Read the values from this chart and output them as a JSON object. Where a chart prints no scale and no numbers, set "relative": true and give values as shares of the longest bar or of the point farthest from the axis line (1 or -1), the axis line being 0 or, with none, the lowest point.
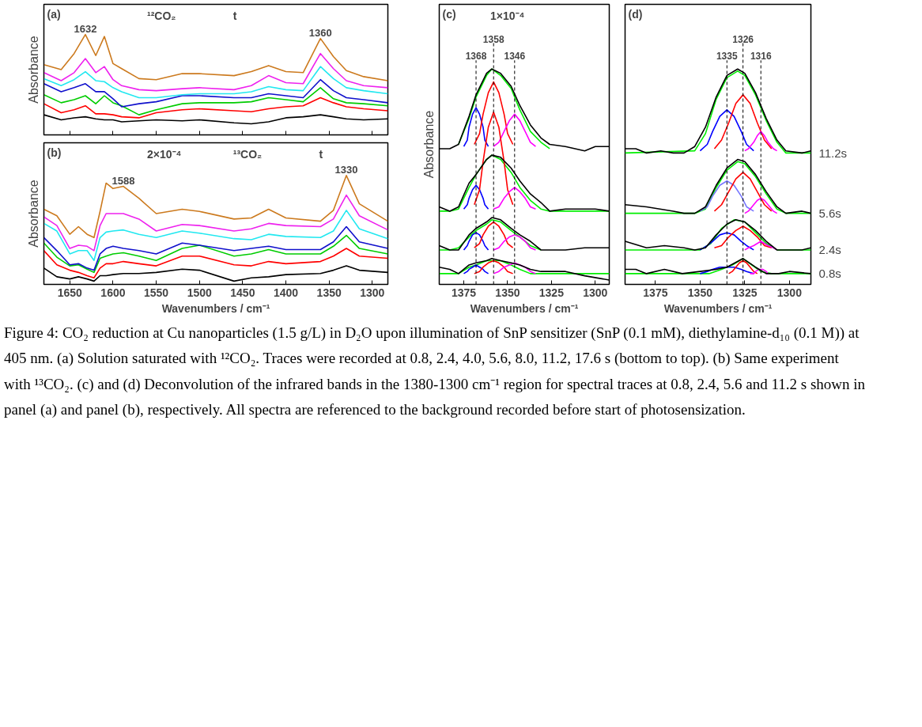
{
  "chart_data": [
    {
      "type": "line",
      "title": "(a)",
      "relative": true,
      "ylabel": "Absorbance",
      "xlim": [
        1680,
        1282
      ],
      "xticks": [
        1650,
        1600,
        1550,
        1500,
        1450,
        1400,
        1350,
        1300
      ],
      "tick_labels": false,
      "x": [
        1680,
        1660,
        1645,
        1632,
        1620,
        1610,
        1600,
        1590,
        1570,
        1550,
        1520,
        1500,
        1460,
        1440,
        1420,
        1400,
        1380,
        1360,
        1345,
        1330,
        1310,
        1282
      ],
      "annotations": [
        "¹²CO₂",
        "t",
        {
          "text": "1632",
          "x": 1632,
          "y": 1.0
        },
        {
          "text": "1360",
          "x": 1360,
          "y": 0.96
        }
      ],
      "series": [
        {
          "color": "#000000",
          "values": [
            0.2,
            0.15,
            0.17,
            0.18,
            0.16,
            0.15,
            0.15,
            0.13,
            0.14,
            0.15,
            0.14,
            0.15,
            0.12,
            0.11,
            0.13,
            0.17,
            0.18,
            0.2,
            0.18,
            0.16,
            0.15,
            0.16
          ]
        },
        {
          "color": "#ff0000",
          "values": [
            0.31,
            0.22,
            0.25,
            0.29,
            0.21,
            0.21,
            0.2,
            0.18,
            0.17,
            0.22,
            0.25,
            0.26,
            0.24,
            0.23,
            0.26,
            0.28,
            0.29,
            0.37,
            0.32,
            0.28,
            0.26,
            0.24
          ]
        },
        {
          "color": "#00cc00",
          "values": [
            0.4,
            0.32,
            0.35,
            0.39,
            0.31,
            0.39,
            0.32,
            0.29,
            0.2,
            0.25,
            0.31,
            0.32,
            0.32,
            0.33,
            0.37,
            0.35,
            0.33,
            0.47,
            0.36,
            0.32,
            0.31,
            0.29
          ]
        },
        {
          "color": "#1010cc",
          "values": [
            0.51,
            0.43,
            0.47,
            0.51,
            0.43,
            0.43,
            0.36,
            0.28,
            0.31,
            0.33,
            0.39,
            0.39,
            0.37,
            0.37,
            0.41,
            0.39,
            0.37,
            0.55,
            0.44,
            0.37,
            0.35,
            0.32
          ]
        },
        {
          "color": "#22e8f0",
          "values": [
            0.56,
            0.49,
            0.55,
            0.63,
            0.54,
            0.53,
            0.47,
            0.43,
            0.37,
            0.37,
            0.4,
            0.41,
            0.41,
            0.43,
            0.48,
            0.45,
            0.44,
            0.68,
            0.56,
            0.47,
            0.44,
            0.41
          ]
        },
        {
          "color": "#ee22ee",
          "values": [
            0.62,
            0.54,
            0.62,
            0.76,
            0.62,
            0.68,
            0.55,
            0.49,
            0.45,
            0.44,
            0.46,
            0.47,
            0.45,
            0.49,
            0.59,
            0.52,
            0.51,
            0.81,
            0.66,
            0.54,
            0.49,
            0.47
          ]
        },
        {
          "color": "#cc7a1e",
          "values": [
            0.7,
            0.65,
            0.81,
            1.0,
            0.79,
            0.98,
            0.71,
            0.66,
            0.56,
            0.55,
            0.61,
            0.61,
            0.59,
            0.63,
            0.69,
            0.63,
            0.62,
            0.96,
            0.78,
            0.64,
            0.58,
            0.54
          ]
        }
      ]
    },
    {
      "type": "line",
      "title": "(b)",
      "relative": true,
      "ylabel": "Absorbance",
      "xlabel": "Wavenumbers / cm⁻¹",
      "xlim": [
        1680,
        1282
      ],
      "xticks": [
        1650,
        1600,
        1550,
        1500,
        1450,
        1400,
        1350,
        1300
      ],
      "x": [
        1680,
        1665,
        1650,
        1640,
        1630,
        1622,
        1615,
        1608,
        1600,
        1588,
        1570,
        1550,
        1520,
        1500,
        1460,
        1440,
        1420,
        1400,
        1360,
        1345,
        1330,
        1315,
        1282
      ],
      "annotations": [
        "2×10⁻⁴",
        "¹³CO₂",
        "t",
        {
          "text": "1588",
          "x": 1588,
          "y": 0.9
        },
        {
          "text": "1330",
          "x": 1330,
          "y": 1.0
        }
      ],
      "series": [
        {
          "color": "#000000",
          "values": [
            0.15,
            0.07,
            0.05,
            0.07,
            0.05,
            0.03,
            0.08,
            0.08,
            0.09,
            0.1,
            0.1,
            0.11,
            0.14,
            0.13,
            0.03,
            0.06,
            0.07,
            0.09,
            0.1,
            0.13,
            0.17,
            0.13,
            0.11
          ]
        },
        {
          "color": "#ff0000",
          "values": [
            0.31,
            0.18,
            0.13,
            0.11,
            0.08,
            0.06,
            0.15,
            0.19,
            0.19,
            0.21,
            0.19,
            0.17,
            0.26,
            0.26,
            0.18,
            0.17,
            0.21,
            0.19,
            0.21,
            0.26,
            0.33,
            0.26,
            0.24
          ]
        },
        {
          "color": "#00cc00",
          "values": [
            0.38,
            0.25,
            0.17,
            0.18,
            0.14,
            0.11,
            0.24,
            0.26,
            0.28,
            0.29,
            0.26,
            0.22,
            0.33,
            0.36,
            0.26,
            0.28,
            0.32,
            0.28,
            0.28,
            0.35,
            0.45,
            0.33,
            0.28
          ]
        },
        {
          "color": "#1010cc",
          "values": [
            0.43,
            0.31,
            0.18,
            0.19,
            0.15,
            0.13,
            0.28,
            0.33,
            0.35,
            0.33,
            0.31,
            0.28,
            0.38,
            0.36,
            0.31,
            0.33,
            0.35,
            0.32,
            0.32,
            0.39,
            0.53,
            0.39,
            0.33
          ]
        },
        {
          "color": "#22e8f0",
          "values": [
            0.56,
            0.49,
            0.28,
            0.31,
            0.31,
            0.22,
            0.43,
            0.48,
            0.49,
            0.5,
            0.46,
            0.43,
            0.49,
            0.47,
            0.42,
            0.41,
            0.46,
            0.44,
            0.43,
            0.49,
            0.68,
            0.51,
            0.42
          ]
        },
        {
          "color": "#ee22ee",
          "values": [
            0.62,
            0.54,
            0.33,
            0.36,
            0.35,
            0.31,
            0.54,
            0.65,
            0.65,
            0.65,
            0.6,
            0.49,
            0.55,
            0.54,
            0.49,
            0.51,
            0.56,
            0.54,
            0.53,
            0.6,
            0.82,
            0.63,
            0.5
          ]
        },
        {
          "color": "#cc7a1e",
          "values": [
            0.69,
            0.63,
            0.46,
            0.53,
            0.46,
            0.43,
            0.67,
            0.93,
            0.88,
            0.9,
            0.79,
            0.65,
            0.69,
            0.67,
            0.6,
            0.61,
            0.69,
            0.61,
            0.58,
            0.68,
            1.0,
            0.74,
            0.58
          ]
        }
      ]
    },
    {
      "type": "line",
      "title": "(c)",
      "relative": true,
      "ylabel": "Absorbance",
      "xlabel": "Wavenumbers / cm⁻¹",
      "xlim": [
        1389,
        1292
      ],
      "xticks": [
        1375,
        1350,
        1325,
        1300
      ],
      "annotations": [
        "1×10⁻⁴"
      ],
      "ref_lines": [
        {
          "axis": "x",
          "value": 1368,
          "label": "1368",
          "line_style": "dashed",
          "color": "#000000"
        },
        {
          "axis": "x",
          "value": 1358,
          "label": "1358",
          "line_style": "dashed",
          "color": "#000000"
        },
        {
          "axis": "x",
          "value": 1346,
          "label": "1346",
          "line_style": "dashed",
          "color": "#000000"
        }
      ],
      "series": [
        {
          "color": "#00ee00",
          "x": [
            1378,
            1372,
            1368,
            1362,
            1359,
            1354,
            1348,
            1343,
            1337,
            1331,
            1326
          ],
          "values": [
            0.65,
            0.77,
            0.87,
            0.97,
            1.0,
            0.97,
            0.91,
            0.81,
            0.71,
            0.66,
            0.63
          ]
        },
        {
          "color": "#0000ff",
          "x": [
            1375,
            1373,
            1372,
            1370,
            1368,
            1366,
            1364,
            1363,
            1361
          ],
          "values": [
            0.64,
            0.67,
            0.73,
            0.79,
            0.82,
            0.79,
            0.73,
            0.67,
            0.64
          ]
        },
        {
          "color": "#ff0000",
          "x": [
            1369,
            1366,
            1364,
            1361,
            1358,
            1355,
            1352,
            1350,
            1347
          ],
          "values": [
            0.65,
            0.7,
            0.79,
            0.89,
            0.94,
            0.89,
            0.79,
            0.7,
            0.65
          ]
        },
        {
          "color": "#ff00ff",
          "x": [
            1358,
            1355,
            1352,
            1349,
            1346,
            1343,
            1340,
            1337,
            1334
          ],
          "values": [
            0.64,
            0.66,
            0.71,
            0.76,
            0.79,
            0.76,
            0.71,
            0.66,
            0.64
          ]
        },
        {
          "color": "#000000",
          "x": [
            1389,
            1383,
            1378,
            1372,
            1368,
            1362,
            1359,
            1354,
            1348,
            1343,
            1337,
            1331,
            1326,
            1317,
            1306,
            1300,
            1292
          ],
          "values": [
            0.63,
            0.63,
            0.65,
            0.78,
            0.88,
            0.98,
            1.0,
            0.98,
            0.92,
            0.83,
            0.74,
            0.68,
            0.65,
            0.64,
            0.62,
            0.64,
            0.64
          ]
        },
        {
          "color": "#00ee00",
          "x": [
            1389,
            1383,
            1378,
            1372,
            1368,
            1362,
            1359,
            1354,
            1348,
            1343,
            1337,
            1331,
            1326,
            1292
          ],
          "values": [
            0.34,
            0.34,
            0.35,
            0.45,
            0.51,
            0.58,
            0.6,
            0.58,
            0.52,
            0.45,
            0.39,
            0.35,
            0.34,
            0.34
          ]
        },
        {
          "color": "#0000ff",
          "x": [
            1375,
            1373,
            1372,
            1370,
            1368,
            1366,
            1364,
            1363,
            1361
          ],
          "values": [
            0.35,
            0.37,
            0.4,
            0.44,
            0.46,
            0.44,
            0.4,
            0.37,
            0.35
          ]
        },
        {
          "color": "#ff0000",
          "x": [
            1369,
            1366,
            1364,
            1361,
            1358,
            1355,
            1352,
            1350,
            1347
          ],
          "values": [
            0.37,
            0.44,
            0.57,
            0.73,
            0.8,
            0.73,
            0.57,
            0.44,
            0.37
          ]
        },
        {
          "color": "#ff00ff",
          "x": [
            1358,
            1355,
            1352,
            1349,
            1346,
            1343,
            1340,
            1337,
            1334
          ],
          "values": [
            0.35,
            0.36,
            0.4,
            0.43,
            0.45,
            0.43,
            0.4,
            0.36,
            0.35
          ]
        },
        {
          "color": "#000000",
          "x": [
            1389,
            1383,
            1378,
            1372,
            1368,
            1362,
            1359,
            1354,
            1348,
            1343,
            1337,
            1331,
            1326,
            1317,
            1306,
            1300,
            1292
          ],
          "values": [
            0.36,
            0.34,
            0.36,
            0.47,
            0.51,
            0.58,
            0.6,
            0.59,
            0.54,
            0.48,
            0.42,
            0.38,
            0.34,
            0.35,
            0.35,
            0.35,
            0.34
          ]
        },
        {
          "color": "#00ee00",
          "x": [
            1389,
            1383,
            1378,
            1372,
            1368,
            1362,
            1359,
            1354,
            1348,
            1343,
            1337,
            1331
          ],
          "values": [
            0.16,
            0.16,
            0.17,
            0.22,
            0.25,
            0.28,
            0.3,
            0.29,
            0.25,
            0.22,
            0.18,
            0.16
          ]
        },
        {
          "color": "#0000ff",
          "x": [
            1375,
            1373,
            1372,
            1370,
            1368,
            1366,
            1364,
            1363,
            1361
          ],
          "values": [
            0.16,
            0.18,
            0.2,
            0.23,
            0.24,
            0.23,
            0.2,
            0.18,
            0.16
          ]
        },
        {
          "color": "#ff0000",
          "x": [
            1369,
            1366,
            1364,
            1361,
            1358,
            1355,
            1352,
            1350,
            1347
          ],
          "values": [
            0.17,
            0.19,
            0.23,
            0.27,
            0.29,
            0.27,
            0.23,
            0.19,
            0.17
          ]
        },
        {
          "color": "#ff00ff",
          "x": [
            1358,
            1355,
            1352,
            1349,
            1346,
            1343,
            1340,
            1337,
            1334
          ],
          "values": [
            0.16,
            0.17,
            0.2,
            0.22,
            0.23,
            0.22,
            0.2,
            0.17,
            0.16
          ]
        },
        {
          "color": "#000000",
          "x": [
            1389,
            1383,
            1378,
            1372,
            1368,
            1362,
            1359,
            1354,
            1348,
            1343,
            1337,
            1331,
            1326,
            1317,
            1306,
            1292
          ],
          "values": [
            0.18,
            0.16,
            0.16,
            0.23,
            0.26,
            0.29,
            0.31,
            0.3,
            0.26,
            0.23,
            0.2,
            0.16,
            0.16,
            0.16,
            0.17,
            0.17
          ]
        },
        {
          "color": "#00ee00",
          "x": [
            1389,
            1378,
            1372,
            1368,
            1362,
            1359,
            1354,
            1348,
            1343,
            1337,
            1292
          ],
          "values": [
            0.05,
            0.05,
            0.08,
            0.09,
            0.11,
            0.11,
            0.11,
            0.09,
            0.07,
            0.05,
            0.05
          ]
        },
        {
          "color": "#0000ff",
          "x": [
            1375,
            1373,
            1372,
            1370,
            1368,
            1366,
            1364,
            1363,
            1361
          ],
          "values": [
            0.05,
            0.06,
            0.07,
            0.08,
            0.09,
            0.08,
            0.07,
            0.06,
            0.05
          ]
        },
        {
          "color": "#ff0000",
          "x": [
            1369,
            1366,
            1364,
            1361,
            1358,
            1355,
            1352,
            1350,
            1347
          ],
          "values": [
            0.05,
            0.06,
            0.08,
            0.1,
            0.11,
            0.1,
            0.08,
            0.06,
            0.05
          ]
        },
        {
          "color": "#ff00ff",
          "x": [
            1358,
            1355,
            1352,
            1349,
            1346,
            1343,
            1340,
            1337,
            1334
          ],
          "values": [
            0.05,
            0.06,
            0.08,
            0.09,
            0.1,
            0.09,
            0.08,
            0.06,
            0.05
          ]
        },
        {
          "color": "#000000",
          "x": [
            1389,
            1383,
            1378,
            1372,
            1368,
            1362,
            1359,
            1354,
            1348,
            1343,
            1337,
            1331,
            1317,
            1306,
            1292
          ],
          "values": [
            0.08,
            0.07,
            0.05,
            0.09,
            0.1,
            0.11,
            0.12,
            0.11,
            0.1,
            0.09,
            0.07,
            0.06,
            0.06,
            0.04,
            0.02
          ]
        }
      ]
    },
    {
      "type": "line",
      "title": "(d)",
      "relative": true,
      "xlabel": "Wavenumbers / cm⁻¹",
      "xlim": [
        1392,
        1288
      ],
      "xticks": [
        1375,
        1350,
        1325,
        1300
      ],
      "annotations": [
        {
          "text": "11.2s",
          "x": 1288,
          "y": 0.61
        },
        {
          "text": "5.6s",
          "x": 1288,
          "y": 0.33
        },
        {
          "text": "2.4s",
          "x": 1288,
          "y": 0.16
        },
        {
          "text": "0.8s",
          "x": 1288,
          "y": 0.05
        },
        "Figure 4: CO₂ reduction at Cu nanoparticles (1.5 g/L) in D₂O upon illumination of SnP sensitizer (SnP (0.1 mM), diethylamine-d₁₀ (0.1 M)) at 405 nm. (a) Solution saturated with ¹²CO₂. Traces were recorded at 0.8, 2.4, 4.0, 5.6, 8.0, 11.2, 17.6 s (bottom to top). (b) Same experiment with ¹³CO₂. (c) and (d) Deconvolution of the infrared bands in the 1380-1300 cm⁻¹ region for spectral traces at 0.8, 2.4, 5.6 and 11.2 s shown in panel (a) and panel (b), respectively. All spectra are referenced to the background recorded before start of photosensization."
      ],
      "ref_lines": [
        {
          "axis": "x",
          "value": 1335,
          "label": "1335",
          "line_style": "dashed",
          "color": "#000000"
        },
        {
          "axis": "x",
          "value": 1326,
          "label": "1326",
          "line_style": "dashed",
          "color": "#000000"
        },
        {
          "axis": "x",
          "value": 1316,
          "label": "1316",
          "line_style": "dashed",
          "color": "#000000"
        }
      ],
      "series": [
        {
          "color": "#00ee00",
          "x": [
            1392,
            1353,
            1347,
            1341,
            1335,
            1329,
            1325,
            1319,
            1313,
            1307,
            1302,
            1288
          ],
          "values": [
            0.61,
            0.62,
            0.7,
            0.86,
            0.96,
            0.99,
            0.97,
            0.88,
            0.76,
            0.66,
            0.61,
            0.61
          ]
        },
        {
          "color": "#0000ff",
          "x": [
            1350,
            1346,
            1343,
            1339,
            1335,
            1331,
            1327,
            1324,
            1320
          ],
          "values": [
            0.62,
            0.65,
            0.71,
            0.78,
            0.81,
            0.78,
            0.71,
            0.65,
            0.62
          ]
        },
        {
          "color": "#ff0000",
          "x": [
            1342,
            1338,
            1334,
            1330,
            1326,
            1322,
            1318,
            1314,
            1310
          ],
          "values": [
            0.63,
            0.67,
            0.75,
            0.84,
            0.88,
            0.84,
            0.75,
            0.67,
            0.63
          ]
        },
        {
          "color": "#ff00ff",
          "x": [
            1325,
            1323,
            1320,
            1318,
            1316,
            1314,
            1312,
            1309,
            1307
          ],
          "values": [
            0.62,
            0.63,
            0.66,
            0.69,
            0.71,
            0.69,
            0.66,
            0.63,
            0.62
          ]
        },
        {
          "color": "#000000",
          "x": [
            1392,
            1386,
            1380,
            1372,
            1365,
            1359,
            1353,
            1347,
            1341,
            1335,
            1329,
            1325,
            1319,
            1313,
            1307,
            1302,
            1293,
            1288
          ],
          "values": [
            0.63,
            0.63,
            0.61,
            0.62,
            0.61,
            0.61,
            0.64,
            0.73,
            0.87,
            0.97,
            1.0,
            0.98,
            0.89,
            0.77,
            0.67,
            0.62,
            0.61,
            0.62
          ]
        },
        {
          "color": "#00ee00",
          "x": [
            1392,
            1353,
            1347,
            1341,
            1335,
            1329,
            1325,
            1319,
            1313,
            1307,
            1302,
            1288
          ],
          "values": [
            0.33,
            0.33,
            0.35,
            0.45,
            0.53,
            0.57,
            0.56,
            0.5,
            0.42,
            0.35,
            0.33,
            0.33
          ]
        },
        {
          "color": "#7777ff",
          "x": [
            1350,
            1346,
            1343,
            1339,
            1335,
            1331,
            1327,
            1324,
            1320
          ],
          "values": [
            0.34,
            0.36,
            0.41,
            0.46,
            0.48,
            0.46,
            0.41,
            0.36,
            0.34
          ]
        },
        {
          "color": "#ff0000",
          "x": [
            1342,
            1338,
            1334,
            1330,
            1326,
            1322,
            1318,
            1314,
            1310
          ],
          "values": [
            0.34,
            0.37,
            0.43,
            0.49,
            0.52,
            0.49,
            0.43,
            0.37,
            0.34
          ]
        },
        {
          "color": "#ff00ff",
          "x": [
            1325,
            1323,
            1320,
            1318,
            1316,
            1314,
            1312,
            1309,
            1307
          ],
          "values": [
            0.33,
            0.34,
            0.37,
            0.39,
            0.4,
            0.39,
            0.37,
            0.34,
            0.33
          ]
        },
        {
          "color": "#000000",
          "x": [
            1392,
            1380,
            1365,
            1359,
            1353,
            1347,
            1341,
            1335,
            1329,
            1325,
            1319,
            1313,
            1307,
            1302,
            1293,
            1288
          ],
          "values": [
            0.37,
            0.36,
            0.34,
            0.33,
            0.33,
            0.36,
            0.46,
            0.54,
            0.58,
            0.57,
            0.51,
            0.43,
            0.36,
            0.33,
            0.34,
            0.33
          ]
        },
        {
          "color": "#00ee00",
          "x": [
            1392,
            1350,
            1344,
            1338,
            1331,
            1325,
            1319,
            1313,
            1307,
            1288
          ],
          "values": [
            0.16,
            0.16,
            0.19,
            0.26,
            0.3,
            0.29,
            0.24,
            0.19,
            0.16,
            0.16
          ]
        },
        {
          "color": "#0000ff",
          "x": [
            1350,
            1346,
            1343,
            1339,
            1335,
            1331,
            1327,
            1324,
            1320
          ],
          "values": [
            0.16,
            0.18,
            0.2,
            0.23,
            0.24,
            0.23,
            0.2,
            0.18,
            0.16
          ]
        },
        {
          "color": "#ff0000",
          "x": [
            1342,
            1338,
            1334,
            1330,
            1326,
            1322,
            1318,
            1314,
            1310
          ],
          "values": [
            0.17,
            0.18,
            0.22,
            0.25,
            0.27,
            0.25,
            0.22,
            0.18,
            0.17
          ]
        },
        {
          "color": "#ff00ff",
          "x": [
            1325,
            1323,
            1320,
            1318,
            1316,
            1314,
            1312,
            1309,
            1307
          ],
          "values": [
            0.16,
            0.17,
            0.18,
            0.19,
            0.2,
            0.19,
            0.18,
            0.17,
            0.16
          ]
        },
        {
          "color": "#000000",
          "x": [
            1392,
            1380,
            1370,
            1359,
            1353,
            1347,
            1341,
            1335,
            1330,
            1325,
            1319,
            1313,
            1307,
            1293,
            1288
          ],
          "values": [
            0.2,
            0.17,
            0.18,
            0.17,
            0.16,
            0.17,
            0.23,
            0.28,
            0.3,
            0.29,
            0.25,
            0.2,
            0.16,
            0.16,
            0.17
          ]
        },
        {
          "color": "#00ee00",
          "x": [
            1392,
            1345,
            1338,
            1332,
            1326,
            1321,
            1316,
            1310,
            1288
          ],
          "values": [
            0.05,
            0.05,
            0.07,
            0.09,
            0.12,
            0.09,
            0.06,
            0.05,
            0.05
          ]
        },
        {
          "color": "#0000ff",
          "x": [
            1350,
            1346,
            1343,
            1339,
            1335,
            1331,
            1327,
            1324,
            1320
          ],
          "values": [
            0.05,
            0.06,
            0.07,
            0.08,
            0.08,
            0.08,
            0.07,
            0.06,
            0.05
          ]
        },
        {
          "color": "#ff0000",
          "x": [
            1334,
            1332,
            1330,
            1328,
            1326,
            1324,
            1322,
            1320,
            1318
          ],
          "values": [
            0.05,
            0.06,
            0.08,
            0.1,
            0.11,
            0.1,
            0.08,
            0.06,
            0.05
          ]
        },
        {
          "color": "#ff00ff",
          "x": [
            1322,
            1320,
            1319,
            1317,
            1316,
            1315,
            1313,
            1312
          ],
          "values": [
            0.05,
            0.05,
            0.06,
            0.07,
            0.07,
            0.07,
            0.06,
            0.05
          ]
        },
        {
          "color": "#000000",
          "x": [
            1392,
            1386,
            1380,
            1370,
            1360,
            1350,
            1341,
            1335,
            1326,
            1319,
            1313,
            1306,
            1300,
            1288
          ],
          "values": [
            0.07,
            0.07,
            0.05,
            0.07,
            0.05,
            0.06,
            0.07,
            0.08,
            0.12,
            0.08,
            0.05,
            0.05,
            0.06,
            0.05
          ]
        }
      ]
    }
  ]
}
